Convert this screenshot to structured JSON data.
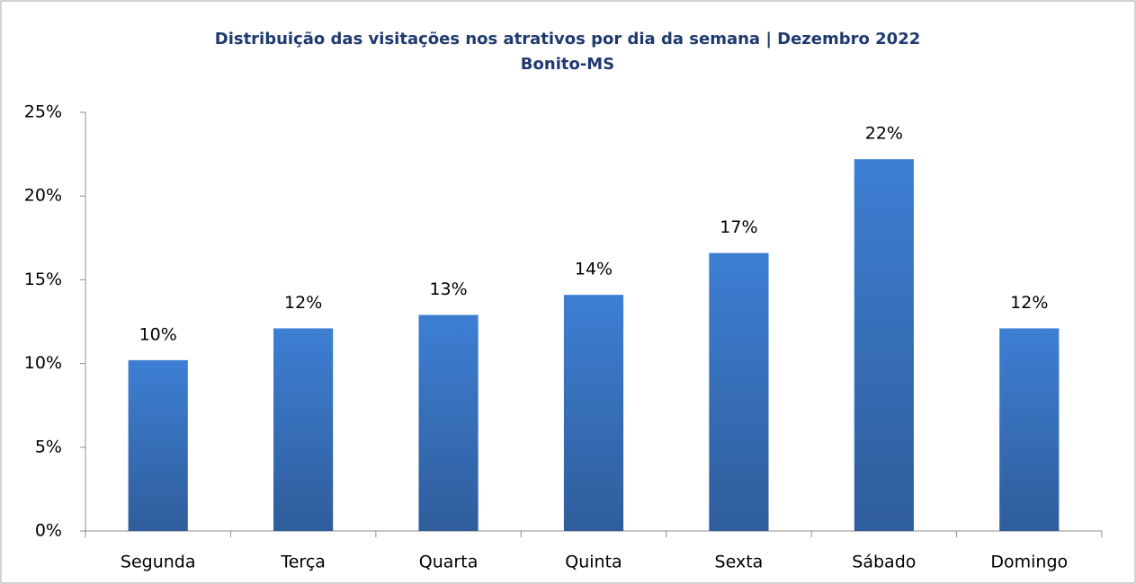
{
  "chart_data": {
    "type": "bar",
    "title": "Distribuição das visitações nos atrativos por dia da semana | Dezembro 2022",
    "subtitle": "Bonito-MS",
    "categories": [
      "Segunda",
      "Terça",
      "Quarta",
      "Quinta",
      "Sexta",
      "Sábado",
      "Domingo"
    ],
    "values": [
      10.2,
      12.1,
      12.9,
      14.1,
      16.6,
      22.2,
      12.1
    ],
    "value_labels": [
      "10%",
      "12%",
      "13%",
      "14%",
      "17%",
      "22%",
      "12%"
    ],
    "color": "#3d7fd3",
    "ylim": [
      0,
      25
    ],
    "yticks": [
      {
        "value": 0,
        "label": "0%"
      },
      {
        "value": 5,
        "label": "5%"
      },
      {
        "value": 10,
        "label": "10%"
      },
      {
        "value": 15,
        "label": "15%"
      },
      {
        "value": 20,
        "label": "20%"
      },
      {
        "value": 25,
        "label": "25%"
      }
    ],
    "grid": false
  }
}
